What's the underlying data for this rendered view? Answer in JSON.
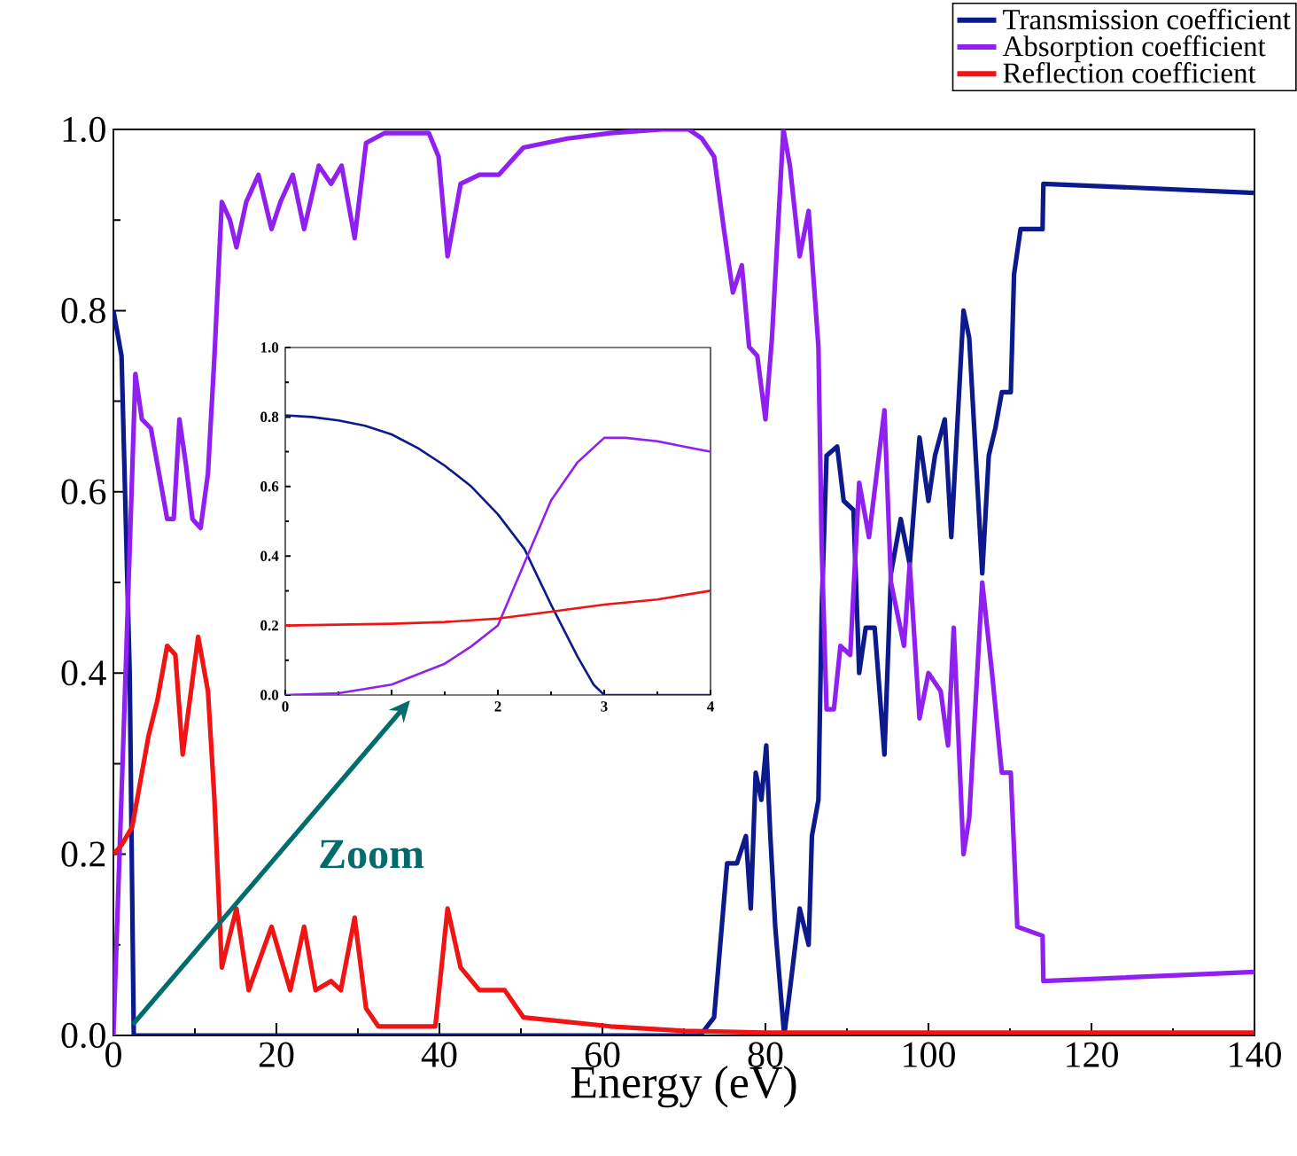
{
  "chart_data": [
    {
      "type": "line",
      "xlabel": "Energy (eV)",
      "xlim": [
        0,
        140
      ],
      "xticks": [
        0,
        20,
        40,
        60,
        80,
        100,
        120,
        140
      ],
      "ylim": [
        0,
        1
      ],
      "yticks": [
        {
          "value": 0,
          "label": "0.0"
        },
        {
          "value": 0.2,
          "label": "0.2"
        },
        {
          "value": 0.4,
          "label": "0.4"
        },
        {
          "value": 0.6,
          "label": "0.6"
        },
        {
          "value": 0.8,
          "label": "0.8"
        },
        {
          "value": 1,
          "label": "1.0"
        }
      ],
      "legend": "top right",
      "annotations": [
        "Zoom"
      ],
      "series": [
        {
          "name": "Transmission coefficient",
          "color": "#0d1a8c",
          "x": [
            0,
            1,
            2,
            2.5,
            72,
            73.7,
            75.3,
            76.5,
            77.6,
            78.2,
            78.8,
            79.5,
            80.1,
            80.6,
            81.2,
            82.3,
            83,
            84.2,
            85.3,
            85.7,
            86.5,
            86.9,
            87.5,
            88.8,
            89.6,
            90.8,
            91.5,
            92.3,
            93.4,
            94.6,
            95.4,
            96.6,
            97.7,
            98.9,
            100,
            100.8,
            102,
            102.8,
            104.3,
            105,
            105.8,
            106.6,
            107.4,
            108.2,
            109,
            110.1,
            110.5,
            111.3,
            114,
            114.1,
            140
          ],
          "values": [
            0.8,
            0.75,
            0.4,
            0,
            0,
            0.02,
            0.19,
            0.19,
            0.22,
            0.14,
            0.29,
            0.26,
            0.32,
            0.22,
            0.12,
            0,
            0.05,
            0.14,
            0.1,
            0.22,
            0.26,
            0.47,
            0.64,
            0.65,
            0.59,
            0.58,
            0.4,
            0.45,
            0.45,
            0.31,
            0.51,
            0.57,
            0.52,
            0.66,
            0.59,
            0.64,
            0.68,
            0.55,
            0.8,
            0.77,
            0.64,
            0.51,
            0.64,
            0.67,
            0.71,
            0.71,
            0.84,
            0.89,
            0.89,
            0.94,
            0.93
          ]
        },
        {
          "name": "Absorption coefficient",
          "color": "#9020f0",
          "x": [
            0,
            1.5,
            2.7,
            3.5,
            4.6,
            5.8,
            6.6,
            7.4,
            8.1,
            8.9,
            9.7,
            10.7,
            11.6,
            12.4,
            13.3,
            14.3,
            15.1,
            16.3,
            17.8,
            19.4,
            20.5,
            22,
            23.4,
            25.2,
            26.7,
            28,
            29.6,
            31,
            33.3,
            38.7,
            39.9,
            41,
            42.6,
            44.9,
            47.3,
            50.3,
            55.7,
            61,
            67.3,
            70.6,
            72.2,
            73.7,
            74.9,
            76,
            77.1,
            78,
            79,
            80,
            80.8,
            82.2,
            83,
            84.2,
            85.3,
            86.5,
            86.9,
            87.5,
            88.4,
            89.2,
            90.4,
            91.5,
            92.7,
            94.6,
            95.4,
            97,
            97.7,
            98.9,
            100,
            101.5,
            102.4,
            103.1,
            104.3,
            105,
            106.6,
            107.8,
            109,
            110.1,
            110.9,
            114,
            114.1,
            140
          ],
          "values": [
            0,
            0.4,
            0.73,
            0.68,
            0.67,
            0.61,
            0.57,
            0.57,
            0.68,
            0.63,
            0.57,
            0.56,
            0.62,
            0.75,
            0.92,
            0.9,
            0.87,
            0.92,
            0.95,
            0.89,
            0.92,
            0.95,
            0.89,
            0.96,
            0.94,
            0.96,
            0.88,
            0.985,
            0.996,
            0.996,
            0.97,
            0.86,
            0.94,
            0.95,
            0.95,
            0.98,
            0.99,
            0.996,
            1,
            1,
            0.99,
            0.97,
            0.89,
            0.82,
            0.85,
            0.76,
            0.75,
            0.68,
            0.77,
            1,
            0.96,
            0.86,
            0.91,
            0.76,
            0.54,
            0.36,
            0.36,
            0.43,
            0.42,
            0.61,
            0.55,
            0.69,
            0.5,
            0.43,
            0.52,
            0.35,
            0.4,
            0.38,
            0.32,
            0.45,
            0.2,
            0.24,
            0.5,
            0.4,
            0.29,
            0.29,
            0.12,
            0.11,
            0.06,
            0.07
          ]
        },
        {
          "name": "Reflection coefficient",
          "color": "#f01414",
          "x": [
            0,
            1,
            2.3,
            3.5,
            4.3,
            5.4,
            6.6,
            7.6,
            8.5,
            10.4,
            11.6,
            12.4,
            13.3,
            15.1,
            16.6,
            19.4,
            21.7,
            23.4,
            24.8,
            26.7,
            27.9,
            29.6,
            31,
            32.5,
            39.5,
            41,
            42.6,
            44.9,
            48,
            50.3,
            61,
            70,
            80,
            140
          ],
          "values": [
            0.2,
            0.21,
            0.23,
            0.29,
            0.33,
            0.37,
            0.43,
            0.42,
            0.31,
            0.44,
            0.38,
            0.26,
            0.075,
            0.14,
            0.05,
            0.12,
            0.05,
            0.12,
            0.05,
            0.06,
            0.05,
            0.13,
            0.03,
            0.01,
            0.01,
            0.14,
            0.075,
            0.05,
            0.05,
            0.02,
            0.01,
            0.005,
            0.003,
            0.003
          ]
        }
      ]
    },
    {
      "type": "line",
      "xlim": [
        0,
        4
      ],
      "xticks": [
        0,
        {
          "value": 1,
          "label": null
        },
        2,
        3,
        4
      ],
      "ylim": [
        0,
        1
      ],
      "yticks": [
        {
          "value": 0,
          "label": "0.0"
        },
        {
          "value": 0.2,
          "label": "0.2"
        },
        {
          "value": 0.4,
          "label": "0.4"
        },
        {
          "value": 0.6,
          "label": "0.6"
        },
        {
          "value": 0.8,
          "label": "0.8"
        },
        {
          "value": 1,
          "label": "1.0"
        }
      ],
      "series": [
        {
          "color": "#0d1a8c",
          "x": [
            0,
            0.25,
            0.5,
            0.75,
            1,
            1.25,
            1.5,
            1.75,
            2,
            2.25,
            2.5,
            2.75,
            2.9,
            3,
            3.5,
            4
          ],
          "values": [
            0.805,
            0.8,
            0.79,
            0.775,
            0.75,
            0.71,
            0.66,
            0.6,
            0.52,
            0.42,
            0.26,
            0.11,
            0.03,
            0,
            0,
            0
          ]
        },
        {
          "color": "#9020f0",
          "x": [
            0,
            0.5,
            1,
            1.5,
            1.75,
            2,
            2.25,
            2.5,
            2.75,
            3,
            3.2,
            3.5,
            4
          ],
          "values": [
            0,
            0.005,
            0.03,
            0.09,
            0.14,
            0.2,
            0.38,
            0.56,
            0.67,
            0.74,
            0.74,
            0.73,
            0.7
          ]
        },
        {
          "color": "#f01414",
          "x": [
            0,
            1,
            1.5,
            2,
            2.5,
            3,
            3.5,
            4
          ],
          "values": [
            0.2,
            0.205,
            0.21,
            0.22,
            0.24,
            0.26,
            0.275,
            0.3
          ]
        }
      ]
    }
  ]
}
